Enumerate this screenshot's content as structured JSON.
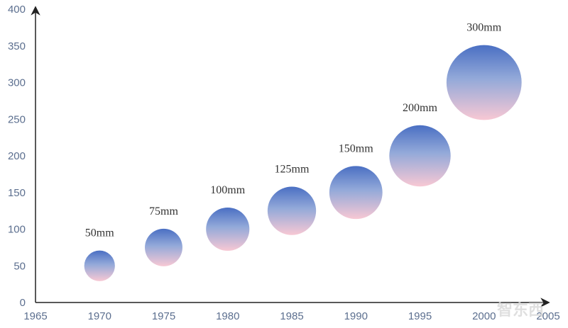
{
  "chart_data": {
    "type": "bubble",
    "title": "",
    "xlabel": "",
    "ylabel": "",
    "xlim": [
      1965,
      2005
    ],
    "ylim": [
      0,
      400
    ],
    "x_ticks": [
      "1965",
      "1970",
      "1975",
      "1980",
      "1985",
      "1990",
      "1995",
      "2000",
      "2005"
    ],
    "y_ticks": [
      "0",
      "50",
      "100",
      "150",
      "200",
      "250",
      "300",
      "350",
      "400"
    ],
    "grid": false,
    "points": [
      {
        "x": 1970,
        "y": 50,
        "size": 50,
        "label": "50mm"
      },
      {
        "x": 1975,
        "y": 75,
        "size": 75,
        "label": "75mm"
      },
      {
        "x": 1980,
        "y": 100,
        "size": 100,
        "label": "100mm"
      },
      {
        "x": 1985,
        "y": 125,
        "size": 125,
        "label": "125mm"
      },
      {
        "x": 1990,
        "y": 150,
        "size": 150,
        "label": "150mm"
      },
      {
        "x": 1995,
        "y": 200,
        "size": 200,
        "label": "200mm"
      },
      {
        "x": 2000,
        "y": 300,
        "size": 300,
        "label": "300mm"
      }
    ],
    "colors": {
      "gradient_top": "#4a6fc3",
      "gradient_mid": "#93a9d9",
      "gradient_bottom": "#f8c8d4",
      "axis": "#222222",
      "tick_text": "#5c6f8f"
    }
  },
  "watermark": "智东西"
}
